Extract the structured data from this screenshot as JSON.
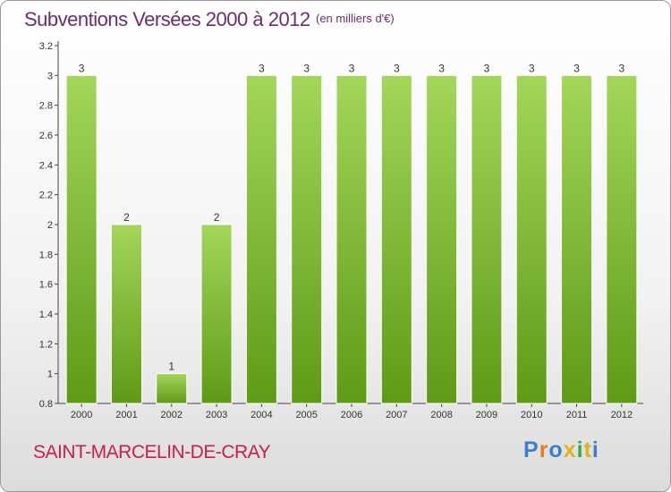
{
  "title": "Subventions Versées 2000 à 2012",
  "unit": "(en milliers d'€)",
  "commune": "SAINT-MARCELIN-DE-CRAY",
  "logo": {
    "text": "Proxiti",
    "colors": [
      "#3a7fcf",
      "#e87a1e",
      "#3a7fcf",
      "#e0b21e",
      "#3aa84a",
      "#e0b21e",
      "#3a7fcf"
    ]
  },
  "colors": {
    "bar_top": "#a3d65a",
    "bar_bottom": "#5f9a16",
    "title": "#6b2d6b",
    "commune": "#c8204a"
  },
  "chart_data": {
    "type": "bar",
    "title": "Subventions Versées 2000 à 2012",
    "categories": [
      "2000",
      "2001",
      "2002",
      "2003",
      "2004",
      "2005",
      "2006",
      "2007",
      "2008",
      "2009",
      "2010",
      "2011",
      "2012"
    ],
    "values": [
      3,
      2,
      1,
      2,
      3,
      3,
      3,
      3,
      3,
      3,
      3,
      3,
      3
    ],
    "data_labels": [
      "3",
      "2",
      "1",
      "2",
      "3",
      "3",
      "3",
      "3",
      "3",
      "3",
      "3",
      "3",
      "3"
    ],
    "ylim": [
      0.8,
      3.2
    ],
    "yticks": [
      0.8,
      1,
      1.2,
      1.4,
      1.6,
      1.8,
      2,
      2.2,
      2.4,
      2.6,
      2.8,
      3,
      3.2
    ],
    "ytick_labels": [
      "0.8",
      "1",
      "1.2",
      "1.4",
      "1.6",
      "1.8",
      "2",
      "2.2",
      "2.4",
      "2.6",
      "2.8",
      "3",
      "3.2"
    ],
    "grid": false,
    "legend": "none"
  }
}
